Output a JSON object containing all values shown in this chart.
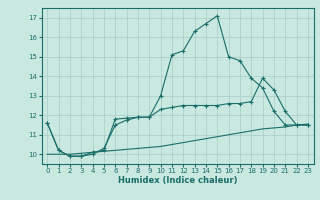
{
  "xlabel": "Humidex (Indice chaleur)",
  "xlim": [
    -0.5,
    23.5
  ],
  "ylim": [
    9.5,
    17.5
  ],
  "yticks": [
    10,
    11,
    12,
    13,
    14,
    15,
    16,
    17
  ],
  "xticks": [
    0,
    1,
    2,
    3,
    4,
    5,
    6,
    7,
    8,
    9,
    10,
    11,
    12,
    13,
    14,
    15,
    16,
    17,
    18,
    19,
    20,
    21,
    22,
    23
  ],
  "background_color": "#c8e8e0",
  "grid_color": "#a8ccc4",
  "line_color": "#1a6e6a",
  "line1_x": [
    0,
    1,
    2,
    3,
    4,
    5,
    6,
    7,
    8,
    9,
    10,
    11,
    12,
    13,
    14,
    15,
    16,
    17,
    18,
    19,
    20,
    21,
    22,
    23
  ],
  "line1_y": [
    11.6,
    10.2,
    9.9,
    9.9,
    10.1,
    10.2,
    11.8,
    11.85,
    11.9,
    11.9,
    13.0,
    15.1,
    15.3,
    16.3,
    16.7,
    17.1,
    15.0,
    14.8,
    13.9,
    13.4,
    12.2,
    11.5,
    11.5,
    11.5
  ],
  "line2_x": [
    0,
    1,
    2,
    3,
    4,
    5,
    6,
    7,
    8,
    9,
    10,
    11,
    12,
    13,
    14,
    15,
    16,
    17,
    18,
    19,
    20,
    21,
    22,
    23
  ],
  "line2_y": [
    11.6,
    10.2,
    9.9,
    9.9,
    10.0,
    10.3,
    11.5,
    11.75,
    11.9,
    11.9,
    12.3,
    12.4,
    12.5,
    12.5,
    12.5,
    12.5,
    12.6,
    12.6,
    12.7,
    13.9,
    13.3,
    12.2,
    11.5,
    11.5
  ],
  "line3_x": [
    0,
    1,
    2,
    3,
    4,
    5,
    6,
    7,
    8,
    9,
    10,
    11,
    12,
    13,
    14,
    15,
    16,
    17,
    18,
    19,
    20,
    21,
    22,
    23
  ],
  "line3_y": [
    10.0,
    10.0,
    10.0,
    10.05,
    10.1,
    10.15,
    10.2,
    10.25,
    10.3,
    10.35,
    10.4,
    10.5,
    10.6,
    10.7,
    10.8,
    10.9,
    11.0,
    11.1,
    11.2,
    11.3,
    11.35,
    11.4,
    11.5,
    11.55
  ]
}
